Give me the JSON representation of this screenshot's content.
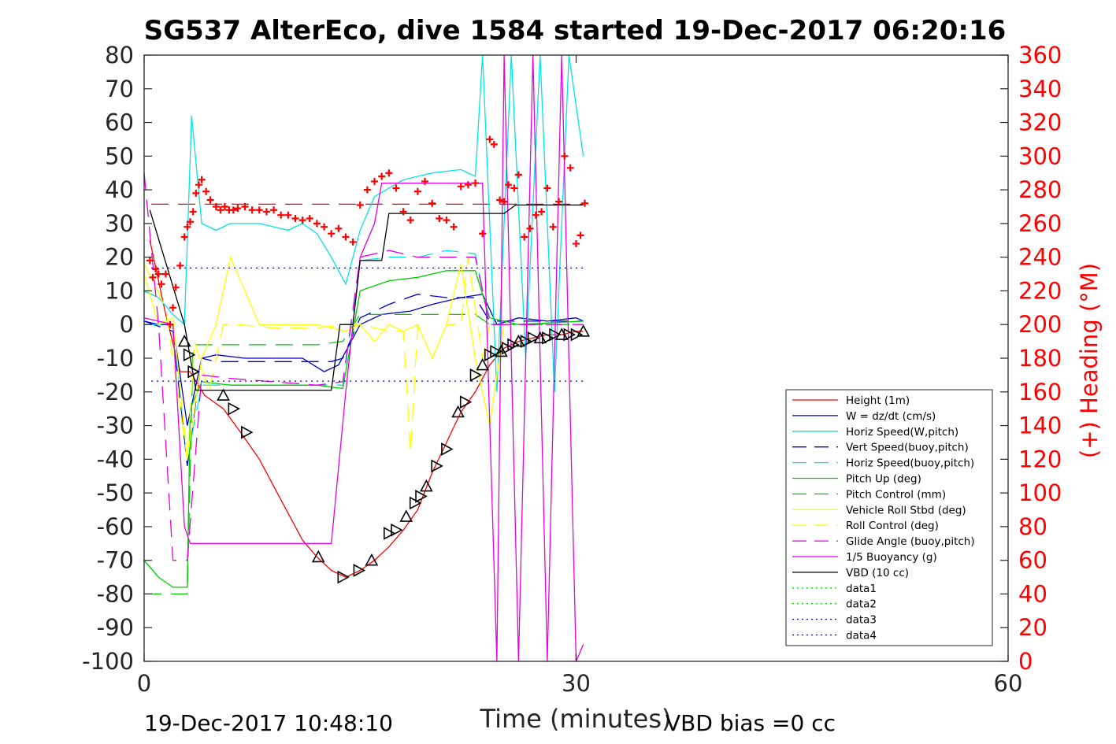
{
  "chart_data": {
    "type": "line",
    "title": "SG537 AlterEco, dive 1584 started 19-Dec-2017 06:20:16",
    "xlabel": "Time (minutes)",
    "ylabel": "",
    "y2label": "(+) Heading (°M)",
    "xlim": [
      0,
      60
    ],
    "ylim": [
      -100,
      80
    ],
    "y2lim": [
      0,
      360
    ],
    "x_ticks": [
      "0",
      "30",
      "60"
    ],
    "y_ticks": [
      "80",
      "70",
      "60",
      "50",
      "40",
      "30",
      "20",
      "10",
      "0",
      "-10",
      "-20",
      "-30",
      "-40",
      "-50",
      "-60",
      "-70",
      "-80",
      "-90",
      "-100"
    ],
    "y2_ticks": [
      "360",
      "340",
      "320",
      "300",
      "280",
      "260",
      "240",
      "220",
      "200",
      "180",
      "160",
      "140",
      "120",
      "100",
      "80",
      "60",
      "40",
      "20",
      "0"
    ],
    "grid": false,
    "legend_position": "bottom-right",
    "footer_left": "19-Dec-2017 10:48:10",
    "footer_right": "VBD bias =0 cc",
    "colors": {
      "red": "#ff0000",
      "blue": "#0000cc",
      "cyan": "#00e5e5",
      "green": "#00cc00",
      "yellow": "#ffff00",
      "magenta": "#e600e6",
      "black": "#000000",
      "dotgreen": "#00e600",
      "dotblue": "#000099"
    },
    "series": [
      {
        "name": "Height (1m)",
        "color": "red",
        "dash": "solid",
        "x": [
          0.4,
          1.5,
          2.5,
          3.2,
          4.2,
          5.5,
          6.7,
          8,
          9,
          10,
          11,
          12,
          13,
          14,
          15,
          16,
          17,
          18,
          19,
          20,
          21,
          22,
          23,
          24,
          25,
          26,
          27,
          28,
          29,
          30,
          30.5
        ],
        "y": [
          25,
          3,
          -14,
          -14,
          -21,
          -25,
          -32,
          -40,
          -48,
          -56,
          -64,
          -69,
          -73,
          -75,
          -73,
          -70,
          -66,
          -61,
          -55,
          -44,
          -35,
          -26,
          -20,
          -12,
          -7,
          -5,
          -4,
          -3,
          -3,
          -2,
          -2
        ]
      },
      {
        "name": "W = dz/dt (cm/s)",
        "color": "blue",
        "dash": "solid",
        "x": [
          0,
          1,
          2,
          3,
          4,
          5,
          7,
          9,
          11,
          12.5,
          13.5,
          14,
          15,
          16.5,
          18.5,
          20,
          22,
          23.5,
          24.5,
          26,
          28,
          30,
          30.5
        ],
        "y": [
          1,
          0,
          0,
          -30,
          -10,
          -9,
          -10,
          -10,
          -10,
          -14,
          -12,
          -8,
          0,
          3,
          4,
          6,
          8,
          9,
          0,
          2,
          1,
          2,
          1
        ]
      },
      {
        "name": "Horiz Speed(W,pitch)",
        "color": "cyan",
        "dash": "solid",
        "x": [
          0,
          1,
          2,
          2.8,
          3.3,
          4,
          5,
          6,
          8,
          10,
          11,
          12,
          13,
          14,
          15,
          16,
          18,
          20,
          22,
          23,
          23.5,
          24.5,
          25.5,
          26.5,
          27.5,
          28.5,
          29.5,
          30.5
        ],
        "y": [
          10,
          8,
          3,
          0,
          62,
          30,
          28,
          30,
          30,
          28,
          30,
          27,
          20,
          12,
          28,
          38,
          43,
          45,
          46,
          44,
          80,
          -20,
          80,
          -10,
          80,
          -20,
          80,
          50
        ]
      },
      {
        "name": "Vert Speed(buoy,pitch)",
        "color": "blue",
        "dash": "dash",
        "x": [
          0,
          2,
          3,
          4,
          5,
          8,
          11,
          13,
          13.8,
          15,
          17,
          19,
          21,
          23,
          24,
          26,
          30.5
        ],
        "y": [
          1,
          -2,
          -42,
          -10,
          -11,
          -11,
          -11,
          -11,
          -10,
          2,
          6,
          9,
          8,
          8,
          1,
          1,
          1
        ]
      },
      {
        "name": "Horiz Speed(buoy,pitch)",
        "color": "cyan",
        "dash": "dash",
        "x": [
          0,
          2,
          3,
          4,
          6,
          9,
          12,
          13.8,
          15,
          17,
          19,
          21,
          23,
          24,
          26,
          30.5
        ],
        "y": [
          0,
          0,
          -40,
          -18,
          -18,
          -18,
          -18,
          -18,
          19,
          20,
          20,
          22,
          21,
          0,
          0,
          1
        ]
      },
      {
        "name": "Pitch Up (deg)",
        "color": "green",
        "dash": "solid",
        "x": [
          0,
          1,
          2,
          3,
          3.2,
          4,
          6,
          9,
          12,
          13.8,
          15,
          17,
          19,
          21,
          23,
          24,
          26,
          30.5
        ],
        "y": [
          -70,
          -75,
          -78,
          -78,
          -25,
          -17,
          -18,
          -18,
          -18,
          -19,
          10,
          13,
          14,
          16,
          16,
          2,
          0,
          1
        ]
      },
      {
        "name": "Pitch Control (mm)",
        "color": "green",
        "dash": "dash",
        "x": [
          0,
          3,
          3.4,
          5,
          9,
          12,
          13.8,
          15,
          17,
          19,
          21,
          23,
          24,
          30.5
        ],
        "y": [
          -80,
          -80,
          -6,
          -6,
          -6,
          -6,
          -5,
          3,
          3,
          3,
          3,
          3,
          0,
          0
        ]
      },
      {
        "name": "Vehicle Roll Stbd (deg)",
        "color": "yellow",
        "dash": "solid",
        "x": [
          0,
          1,
          2,
          3,
          4,
          5,
          6,
          8,
          10,
          12,
          14,
          15,
          16,
          17,
          18,
          19,
          20,
          21,
          22,
          23,
          24,
          25
        ],
        "y": [
          15,
          0,
          2,
          -40,
          -10,
          0,
          20,
          0,
          0,
          0,
          -2,
          0,
          -5,
          0,
          -2,
          0,
          -10,
          0,
          18,
          -10,
          -30,
          0
        ]
      },
      {
        "name": "Roll Control (deg)",
        "color": "yellow",
        "dash": "dash",
        "x": [
          0,
          1.5,
          3,
          3.5,
          4.5,
          5.5,
          6.5,
          9,
          12,
          14,
          15,
          17,
          18,
          18.5,
          19,
          20,
          21,
          22,
          22.5,
          23.5,
          24
        ],
        "y": [
          18,
          5,
          -40,
          -5,
          -20,
          0,
          0,
          -1,
          -1,
          0,
          0,
          -2,
          -2,
          -38,
          0,
          -10,
          0,
          0,
          20,
          -10,
          0
        ]
      },
      {
        "name": "Glide Angle (buoy,pitch)",
        "color": "magenta",
        "dash": "dash",
        "x": [
          0,
          1,
          2,
          3,
          4,
          6,
          9,
          12,
          13.8,
          15,
          17,
          19,
          21,
          23,
          24,
          30.5
        ],
        "y": [
          45,
          0,
          -70,
          -70,
          -15,
          -16,
          -17,
          -18,
          -17,
          20,
          22,
          20,
          20,
          20,
          0,
          0
        ]
      },
      {
        "name": "1/5 Buoyancy (g)",
        "color": "magenta",
        "dash": "solid",
        "x": [
          0,
          2,
          2.8,
          3.2,
          6,
          9,
          12,
          13,
          14,
          15,
          16,
          16.5,
          17,
          19,
          21,
          23.5,
          24.5,
          25,
          26,
          27,
          28,
          29,
          30,
          30.5
        ],
        "y": [
          2,
          0,
          -60,
          -65,
          -65,
          -65,
          -65,
          -65,
          -20,
          20,
          30,
          42,
          42,
          42,
          42,
          42,
          -100,
          80,
          -100,
          80,
          -100,
          80,
          -100,
          -95
        ]
      },
      {
        "name": "VBD (10 cc)",
        "color": "black",
        "dash": "solid",
        "x": [
          0.4,
          2.8,
          3.6,
          6,
          9,
          12,
          13,
          13.6,
          14.5,
          15,
          16.5,
          17,
          20,
          23,
          25,
          25.8,
          28,
          30.5
        ],
        "y": [
          34,
          0,
          -19.5,
          -19.5,
          -19.5,
          -19.5,
          -19.5,
          0,
          0,
          19,
          19,
          33,
          33,
          33,
          33,
          35.5,
          35.5,
          35.5
        ]
      },
      {
        "name": "data1",
        "color": "dotgreen",
        "dash": "dot",
        "x": [],
        "y": []
      },
      {
        "name": "data2",
        "color": "dotgreen",
        "dash": "dot",
        "x": [],
        "y": []
      },
      {
        "name": "data3",
        "color": "dotblue",
        "dash": "dot",
        "x": [
          0.5,
          30.5
        ],
        "y": [
          16.8,
          16.8
        ]
      },
      {
        "name": "data4",
        "color": "dotblue",
        "dash": "dot",
        "x": [
          0.5,
          30.5
        ],
        "y": [
          -16.8,
          -16.8
        ]
      }
    ],
    "heading_points": {
      "x": [
        0.4,
        0.6,
        0.8,
        1.0,
        1.2,
        1.5,
        1.8,
        2.0,
        2.2,
        2.5,
        2.8,
        3.0,
        3.2,
        3.4,
        3.6,
        3.8,
        4.0,
        4.3,
        4.6,
        5.0,
        5.3,
        5.6,
        5.9,
        6.2,
        6.5,
        7.0,
        7.5,
        8.0,
        8.5,
        9.0,
        9.5,
        10.0,
        10.5,
        11.0,
        11.5,
        12.0,
        12.5,
        13.0,
        13.5,
        14.0,
        14.5,
        15.0,
        15.5,
        16.0,
        16.5,
        17.0,
        17.5,
        18.0,
        18.5,
        19.0,
        19.5,
        20.0,
        20.5,
        21.0,
        21.5,
        22.0,
        22.5,
        23.0,
        23.5,
        24.0,
        24.3,
        24.7,
        25.0,
        25.3,
        25.7,
        26.0,
        26.4,
        26.8,
        27.2,
        27.6,
        28.0,
        28.4,
        28.8,
        29.2,
        29.6,
        30.0,
        30.3,
        30.6
      ],
      "y": [
        238,
        228,
        233,
        230,
        224,
        230,
        200,
        210,
        222,
        235,
        252,
        258,
        261,
        267,
        278,
        283,
        286,
        279,
        274,
        270,
        268,
        270,
        268,
        268,
        269,
        270,
        268,
        268,
        267,
        268,
        265,
        265,
        263,
        262,
        263,
        260,
        258,
        254,
        257,
        252,
        249,
        271,
        280,
        285,
        288,
        290,
        281,
        267,
        262,
        279,
        285,
        272,
        263,
        262,
        258,
        282,
        283,
        284,
        254,
        310,
        307,
        274,
        273,
        283,
        281,
        289,
        252,
        257,
        265,
        267,
        281,
        258,
        273,
        300,
        293,
        248,
        253,
        272
      ]
    },
    "heading_reference": 271.5,
    "triangle_markers": {
      "x": [
        2.8,
        3.1,
        3.4,
        5.5,
        6.2,
        7.1,
        12.1,
        13.8,
        14.9,
        15.8,
        17.0,
        17.5,
        18.2,
        18.8,
        19.2,
        19.6,
        20.3,
        21.0,
        21.8,
        22.3,
        23.0,
        23.5,
        24.0,
        24.4,
        24.8,
        25.2,
        25.6,
        26.0,
        26.5,
        27.0,
        27.5,
        28.0,
        28.5,
        29.0,
        29.5,
        30.0,
        30.5
      ],
      "y": [
        -5,
        -9,
        -14,
        -21,
        -25,
        -32,
        -69,
        -75,
        -73,
        -70,
        -62,
        -61,
        -57,
        -53,
        -51,
        -48,
        -42,
        -37,
        -26,
        -23,
        -15,
        -12,
        -9,
        -8,
        -8,
        -7,
        -6,
        -5,
        -5,
        -4,
        -4,
        -4,
        -3,
        -3,
        -3,
        -3,
        -2
      ]
    }
  }
}
